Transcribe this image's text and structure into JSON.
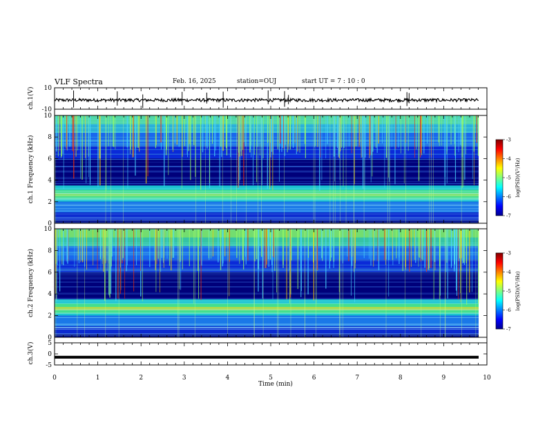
{
  "header": {
    "title": "VLF Spectra",
    "date": "Feb. 16, 2025",
    "station": "station=OUJ",
    "start": "start  UT =   7 : 10 : 0"
  },
  "chart_data": [
    {
      "type": "line",
      "title": "ch.1(V)",
      "ylabel": "ch.1(V)",
      "ylim": [
        -10,
        10
      ],
      "yticks": [
        "10",
        "-10"
      ],
      "xlim": [
        0,
        10
      ],
      "series": [
        {
          "name": "ch.1 waveform",
          "baseline": -1.5,
          "amplitude": 1.5,
          "spike_times": [
            0.44,
            1.45,
            2.04,
            2.95,
            3.52,
            3.9,
            4.94,
            5.32,
            5.41,
            8.15,
            8.2
          ]
        }
      ]
    },
    {
      "type": "heatmap",
      "title": "ch.1 spectrogram",
      "ylabel": "ch.1 Frequency (kHz)",
      "ylim": [
        0,
        10
      ],
      "yticks": [
        "0",
        "2",
        "4",
        "6",
        "8",
        "10"
      ],
      "xlim": [
        0,
        9.85
      ],
      "bands_khz": [
        [
          2.0,
          3.4,
          "green"
        ],
        [
          1.0,
          2.0,
          "cyan"
        ],
        [
          6.0,
          10.0,
          "cyan"
        ]
      ]
    },
    {
      "type": "heatmap",
      "title": "ch.2 spectrogram",
      "ylabel": "ch.2 Frequency (kHz)",
      "ylim": [
        0,
        10
      ],
      "yticks": [
        "0",
        "2",
        "4",
        "6",
        "8",
        "10"
      ],
      "xlim": [
        0,
        9.85
      ],
      "bands_khz": [
        [
          1.8,
          3.4,
          "green"
        ],
        [
          1.0,
          1.8,
          "cyan"
        ],
        [
          6.0,
          10.0,
          "green"
        ]
      ]
    },
    {
      "type": "line",
      "title": "ch.3(V)",
      "ylabel": "ch.3(V)",
      "ylim": [
        -5,
        5
      ],
      "yticks": [
        "5",
        "0",
        "-5"
      ],
      "xlim": [
        0,
        10
      ],
      "xlabel": "Time (min)",
      "xticks": [
        "0",
        "1",
        "2",
        "3",
        "4",
        "5",
        "6",
        "7",
        "8",
        "9",
        "10"
      ],
      "series": [
        {
          "name": "ch.3 waveform",
          "value": -1.5
        }
      ]
    }
  ],
  "colorbar": {
    "label": "log(PSD)(V²/Hz)",
    "ticks": [
      "-3",
      "-4",
      "-5",
      "-6",
      "-7"
    ],
    "range": [
      -7,
      -3
    ],
    "colors": [
      "#00008f",
      "#0000ff",
      "#0080ff",
      "#00ffff",
      "#80ff80",
      "#ffff00",
      "#ff8000",
      "#ff0000",
      "#800000"
    ]
  }
}
